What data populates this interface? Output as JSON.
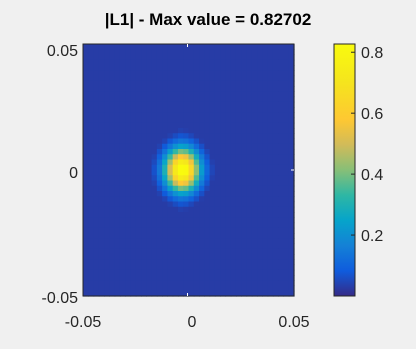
{
  "chart_data": {
    "type": "heatmap",
    "title": "|L1| - Max value = 0.82702",
    "xlabel": "",
    "ylabel": "",
    "xlim": [
      -0.05,
      0.05
    ],
    "ylim": [
      -0.05,
      0.05
    ],
    "x_ticks": [
      "-0.05",
      "0",
      "0.05"
    ],
    "y_ticks": [
      "0.05",
      "0",
      "-0.05"
    ],
    "colorbar": {
      "colormap": "parula",
      "range": [
        0,
        0.82702
      ],
      "ticks": [
        "0.8",
        "0.6",
        "0.4",
        "0.2"
      ],
      "tick_values": [
        0.8,
        0.6,
        0.4,
        0.2
      ]
    },
    "peak": {
      "x": -0.003,
      "y": 0.0,
      "value": 0.82702,
      "spread_x": 0.0075,
      "spread_y": 0.0078
    },
    "background_value": 0.03,
    "grid": false,
    "colors": {
      "background": "#f0f0f0",
      "low": "#3e26a8",
      "high": "#f9fb0e"
    }
  }
}
